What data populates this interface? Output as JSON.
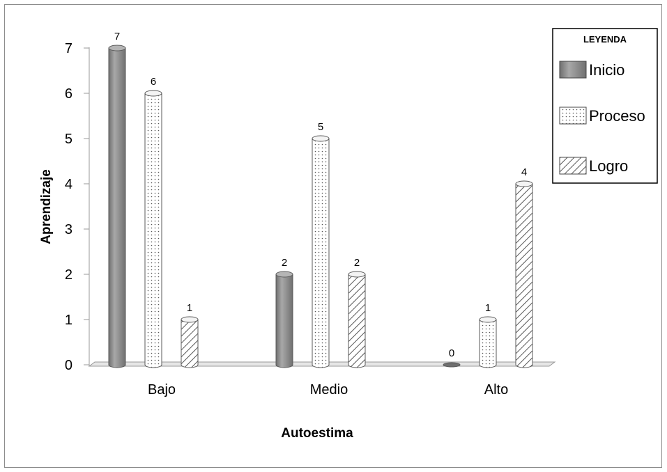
{
  "chart_data": {
    "type": "bar",
    "title": "",
    "xlabel": "Autoestima",
    "ylabel": "Aprendizaje",
    "categories": [
      "Bajo",
      "Medio",
      "Alto"
    ],
    "series": [
      {
        "name": "Inicio",
        "values": [
          7,
          2,
          0
        ],
        "pattern": "solid-gray"
      },
      {
        "name": "Proceso",
        "values": [
          6,
          5,
          1
        ],
        "pattern": "dots"
      },
      {
        "name": "Logro",
        "values": [
          1,
          2,
          4
        ],
        "pattern": "hatch"
      }
    ],
    "ylim": [
      0,
      7
    ],
    "yticks": [
      0,
      1,
      2,
      3,
      4,
      5,
      6,
      7
    ],
    "grid": false,
    "legend": {
      "title": "LEYENDA",
      "placement": "top-right"
    },
    "colors": {
      "inicio": "#8a8a8a",
      "pattern_line": "#555555",
      "axis": "#999999"
    }
  }
}
